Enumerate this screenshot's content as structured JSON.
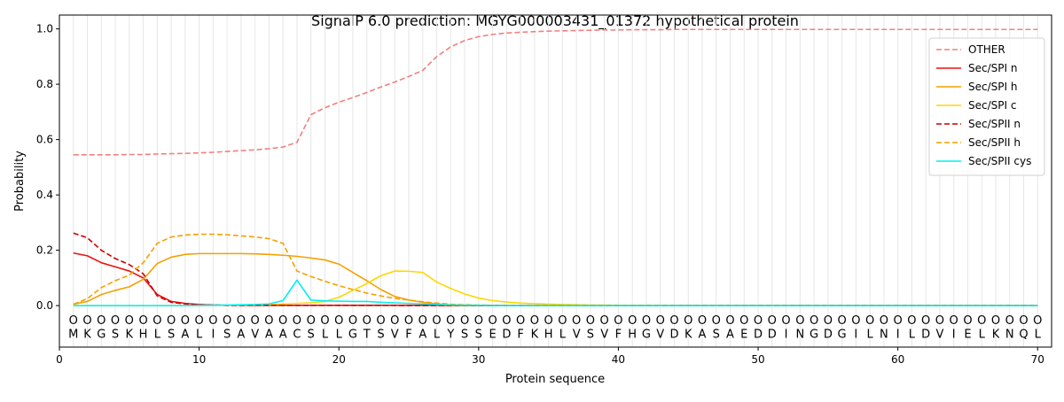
{
  "chart_data": {
    "type": "line",
    "title": "SignalP 6.0 prediction: MGYG000003431_01372 hypothetical protein",
    "xlabel": "Protein sequence",
    "ylabel": "Probability",
    "xlim": [
      0,
      71
    ],
    "ylim": [
      -0.15,
      1.05
    ],
    "xticks": [
      0,
      10,
      20,
      30,
      40,
      50,
      60,
      70
    ],
    "yticks": [
      0.0,
      0.2,
      0.4,
      0.6,
      0.8,
      1.0
    ],
    "xtick_labels": [
      "0",
      "10",
      "20",
      "30",
      "40",
      "50",
      "60",
      "70"
    ],
    "ytick_labels": [
      "0.0",
      "0.2",
      "0.4",
      "0.6",
      "0.8",
      "1.0"
    ],
    "grid": "vertical lines at each residue",
    "legend_position": "top-right",
    "sequence": [
      "M",
      "K",
      "G",
      "S",
      "K",
      "H",
      "L",
      "S",
      "A",
      "L",
      "I",
      "S",
      "A",
      "V",
      "A",
      "A",
      "C",
      "S",
      "L",
      "L",
      "G",
      "T",
      "S",
      "V",
      "F",
      "A",
      "L",
      "Y",
      "S",
      "S",
      "E",
      "D",
      "F",
      "K",
      "H",
      "L",
      "V",
      "S",
      "V",
      "F",
      "H",
      "G",
      "V",
      "D",
      "K",
      "A",
      "S",
      "A",
      "E",
      "D",
      "D",
      "I",
      "N",
      "G",
      "D",
      "G",
      "I",
      "L",
      "N",
      "I",
      "L",
      "D",
      "V",
      "I",
      "E",
      "L",
      "K",
      "N",
      "Q",
      "L"
    ],
    "region_labels": [
      "O",
      "O",
      "O",
      "O",
      "O",
      "O",
      "O",
      "O",
      "O",
      "O",
      "O",
      "O",
      "O",
      "O",
      "O",
      "O",
      "O",
      "O",
      "O",
      "O",
      "O",
      "O",
      "O",
      "O",
      "O",
      "O",
      "O",
      "O",
      "O",
      "O",
      "O",
      "O",
      "O",
      "O",
      "O",
      "O",
      "O",
      "O",
      "O",
      "O",
      "O",
      "O",
      "O",
      "O",
      "O",
      "O",
      "O",
      "O",
      "O",
      "O",
      "O",
      "O",
      "O",
      "O",
      "O",
      "O",
      "O",
      "O",
      "O",
      "O",
      "O",
      "O",
      "O",
      "O",
      "O",
      "O",
      "O",
      "O",
      "O",
      "O"
    ],
    "series": [
      {
        "name": "OTHER",
        "color": "#f08080",
        "dash": "dashed",
        "values": [
          0.545,
          0.545,
          0.545,
          0.545,
          0.546,
          0.546,
          0.548,
          0.549,
          0.55,
          0.552,
          0.554,
          0.557,
          0.56,
          0.563,
          0.567,
          0.573,
          0.59,
          0.69,
          0.715,
          0.735,
          0.752,
          0.77,
          0.79,
          0.808,
          0.828,
          0.85,
          0.9,
          0.935,
          0.958,
          0.972,
          0.98,
          0.985,
          0.988,
          0.99,
          0.992,
          0.993,
          0.994,
          0.995,
          0.996,
          0.996,
          0.997,
          0.997,
          0.997,
          0.998,
          0.998,
          0.998,
          0.998,
          0.998,
          0.998,
          0.998,
          0.998,
          0.998,
          0.998,
          0.998,
          0.998,
          0.998,
          0.998,
          0.998,
          0.998,
          0.998,
          0.998,
          0.998,
          0.998,
          0.998,
          0.998,
          0.998,
          0.998,
          0.998,
          0.998,
          0.998
        ]
      },
      {
        "name": "Sec/SPI n",
        "color": "#ee1111",
        "dash": "solid",
        "values": [
          0.19,
          0.18,
          0.155,
          0.14,
          0.125,
          0.1,
          0.04,
          0.015,
          0.008,
          0.004,
          0.002,
          0.001,
          0.001,
          0.001,
          0.001,
          0.001,
          0.001,
          0.001,
          0.001,
          0.001,
          0.001,
          0.001,
          0.001,
          0.001,
          0.001,
          0.001,
          0.001,
          0,
          0,
          0,
          0,
          0,
          0,
          0,
          0,
          0,
          0,
          0,
          0,
          0,
          0,
          0,
          0,
          0,
          0,
          0,
          0,
          0,
          0,
          0,
          0,
          0,
          0,
          0,
          0,
          0,
          0,
          0,
          0,
          0,
          0,
          0,
          0,
          0,
          0,
          0,
          0,
          0,
          0,
          0
        ]
      },
      {
        "name": "Sec/SPI h",
        "color": "#f5a000",
        "dash": "solid",
        "values": [
          0.005,
          0.015,
          0.04,
          0.055,
          0.068,
          0.095,
          0.152,
          0.175,
          0.185,
          0.188,
          0.188,
          0.188,
          0.188,
          0.187,
          0.185,
          0.182,
          0.178,
          0.172,
          0.165,
          0.15,
          0.12,
          0.09,
          0.058,
          0.033,
          0.02,
          0.012,
          0.006,
          0.003,
          0.002,
          0.001,
          0.001,
          0,
          0,
          0,
          0,
          0,
          0,
          0,
          0,
          0,
          0,
          0,
          0,
          0,
          0,
          0,
          0,
          0,
          0,
          0,
          0,
          0,
          0,
          0,
          0,
          0,
          0,
          0,
          0,
          0,
          0,
          0,
          0,
          0,
          0,
          0,
          0,
          0,
          0,
          0
        ]
      },
      {
        "name": "Sec/SPI c",
        "color": "#ffd700",
        "dash": "solid",
        "values": [
          0,
          0,
          0,
          0,
          0,
          0,
          0,
          0,
          0,
          0,
          0.001,
          0.001,
          0.002,
          0.003,
          0.004,
          0.006,
          0.008,
          0.01,
          0.015,
          0.03,
          0.055,
          0.08,
          0.108,
          0.125,
          0.124,
          0.12,
          0.085,
          0.062,
          0.042,
          0.027,
          0.018,
          0.013,
          0.009,
          0.007,
          0.005,
          0.004,
          0.003,
          0.002,
          0.002,
          0.001,
          0.001,
          0.001,
          0.001,
          0,
          0,
          0,
          0,
          0,
          0,
          0,
          0,
          0,
          0,
          0,
          0,
          0,
          0,
          0,
          0,
          0,
          0,
          0,
          0,
          0,
          0,
          0,
          0,
          0,
          0,
          0
        ]
      },
      {
        "name": "Sec/SPII n",
        "color": "#cc0000",
        "dash": "dashed",
        "values": [
          0.262,
          0.245,
          0.2,
          0.17,
          0.148,
          0.115,
          0.035,
          0.012,
          0.006,
          0.003,
          0.002,
          0.001,
          0.001,
          0.001,
          0.001,
          0.001,
          0.001,
          0.001,
          0.001,
          0.001,
          0.001,
          0.001,
          0.001,
          0.001,
          0,
          0,
          0,
          0,
          0,
          0,
          0,
          0,
          0,
          0,
          0,
          0,
          0,
          0,
          0,
          0,
          0,
          0,
          0,
          0,
          0,
          0,
          0,
          0,
          0,
          0,
          0,
          0,
          0,
          0,
          0,
          0,
          0,
          0,
          0,
          0,
          0,
          0,
          0,
          0,
          0,
          0,
          0,
          0,
          0,
          0
        ]
      },
      {
        "name": "Sec/SPII h",
        "color": "#f5a000",
        "dash": "dashed",
        "values": [
          0.005,
          0.025,
          0.065,
          0.09,
          0.11,
          0.155,
          0.225,
          0.248,
          0.255,
          0.258,
          0.258,
          0.256,
          0.252,
          0.248,
          0.242,
          0.225,
          0.125,
          0.105,
          0.088,
          0.072,
          0.058,
          0.045,
          0.035,
          0.026,
          0.02,
          0.014,
          0.009,
          0.005,
          0.003,
          0.002,
          0.001,
          0,
          0,
          0,
          0,
          0,
          0,
          0,
          0,
          0,
          0,
          0,
          0,
          0,
          0,
          0,
          0,
          0,
          0,
          0,
          0,
          0,
          0,
          0,
          0,
          0,
          0,
          0,
          0,
          0,
          0,
          0,
          0,
          0,
          0,
          0,
          0,
          0,
          0,
          0
        ]
      },
      {
        "name": "Sec/SPII cys",
        "color": "#00f0f0",
        "dash": "solid",
        "values": [
          0,
          0,
          0,
          0,
          0,
          0,
          0,
          0,
          0,
          0.001,
          0.001,
          0.002,
          0.003,
          0.004,
          0.006,
          0.018,
          0.092,
          0.02,
          0.017,
          0.016,
          0.015,
          0.015,
          0.012,
          0.01,
          0.008,
          0.006,
          0.004,
          0.002,
          0.001,
          0.001,
          0,
          0,
          0,
          0,
          0,
          0,
          0,
          0,
          0,
          0,
          0,
          0,
          0,
          0,
          0,
          0,
          0,
          0,
          0,
          0,
          0,
          0,
          0,
          0,
          0,
          0,
          0,
          0,
          0,
          0,
          0,
          0,
          0,
          0,
          0,
          0,
          0,
          0,
          0,
          0
        ]
      }
    ]
  }
}
